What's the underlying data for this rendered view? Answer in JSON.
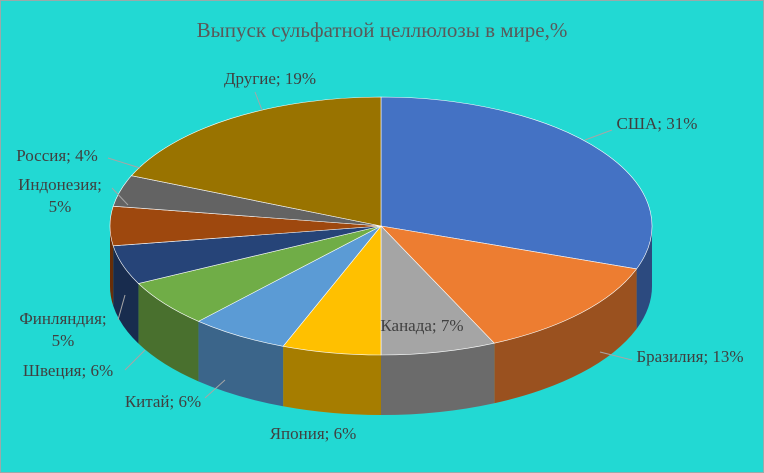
{
  "chart_data": {
    "type": "pie3d",
    "title": "Выпуск сульфатной целлюлозы в мире,%",
    "values": [
      31,
      13,
      7,
      6,
      6,
      6,
      5,
      5,
      4,
      19
    ],
    "value_labels": [
      "США; 31%",
      "Бразилия; 13%",
      "Канада; 7%",
      "Япония; 6%",
      "Китай; 6%",
      "Швеция; 6%",
      "Финляндия; 5%",
      "Индонезия; 5%",
      "Россия; 4%",
      "Другие; 19%"
    ],
    "colors": [
      "#4472c4",
      "#ed7d31",
      "#a5a5a5",
      "#ffc000",
      "#5b9bd5",
      "#70ad47",
      "#264478",
      "#9e480e",
      "#636363",
      "#997300"
    ]
  }
}
